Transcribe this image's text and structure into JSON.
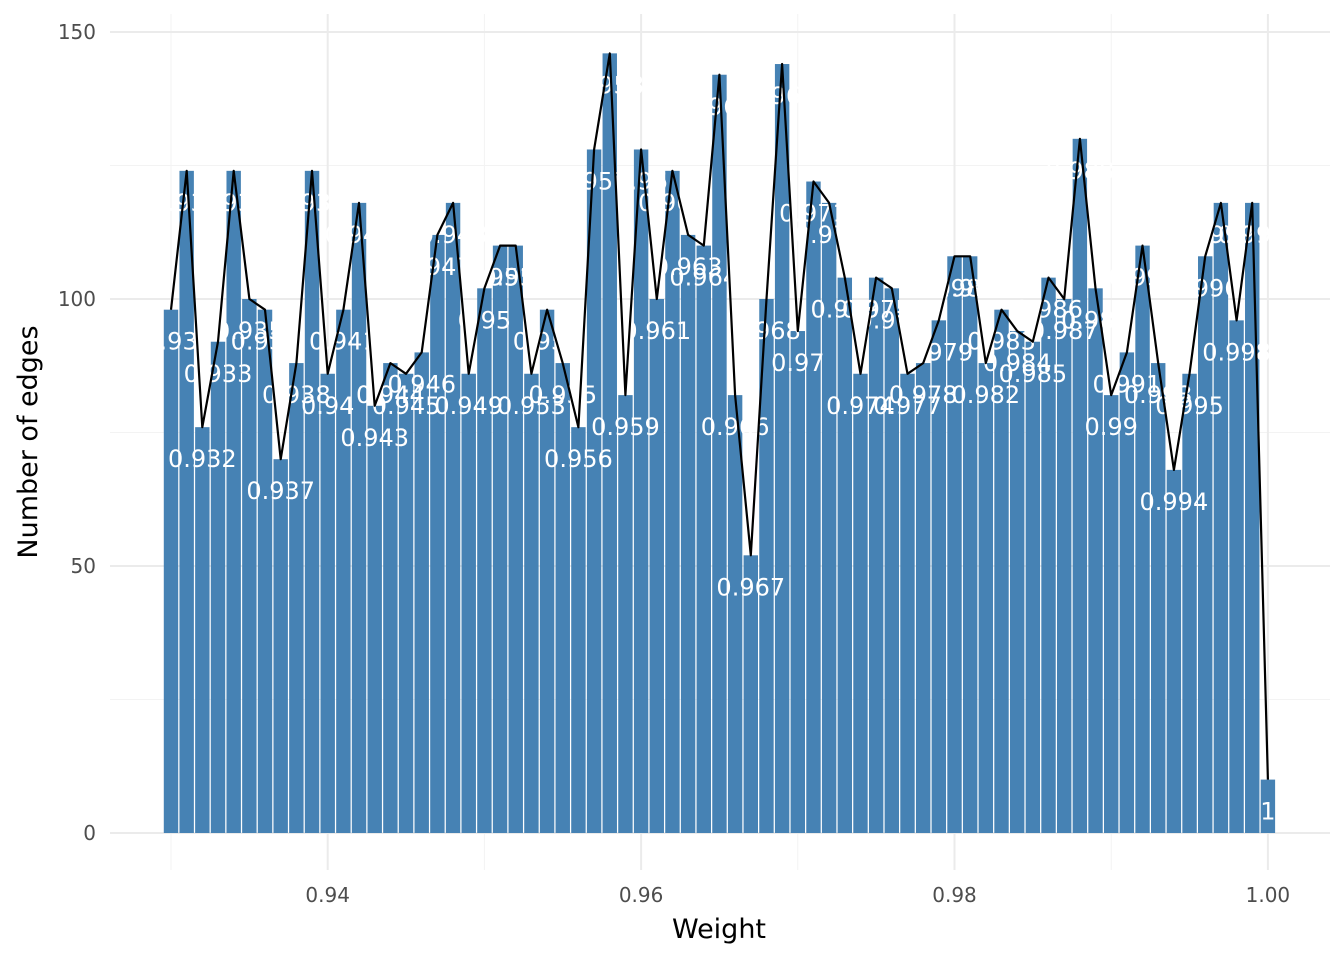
{
  "chart_data": {
    "type": "bar",
    "xlabel": "Weight",
    "ylabel": "Number of edges",
    "xlim": [
      0.926,
      1.0035
    ],
    "ylim": [
      0,
      150
    ],
    "x_ticks": [
      0.94,
      0.96,
      0.98,
      1.0
    ],
    "x_tick_labels": [
      "0.94",
      "0.96",
      "0.98",
      "1.00"
    ],
    "y_ticks": [
      0,
      50,
      100,
      150
    ],
    "y_tick_labels": [
      "0",
      "50",
      "100",
      "150"
    ],
    "grid": true,
    "bar_color": "#4682b4",
    "line_color": "#000000",
    "x": [
      0.93,
      0.931,
      0.932,
      0.933,
      0.934,
      0.935,
      0.936,
      0.937,
      0.938,
      0.939,
      0.94,
      0.941,
      0.942,
      0.943,
      0.944,
      0.945,
      0.946,
      0.947,
      0.948,
      0.949,
      0.95,
      0.951,
      0.952,
      0.953,
      0.954,
      0.955,
      0.956,
      0.957,
      0.958,
      0.959,
      0.96,
      0.961,
      0.962,
      0.963,
      0.964,
      0.965,
      0.966,
      0.967,
      0.968,
      0.969,
      0.97,
      0.971,
      0.972,
      0.973,
      0.974,
      0.975,
      0.976,
      0.977,
      0.978,
      0.979,
      0.98,
      0.981,
      0.982,
      0.983,
      0.984,
      0.985,
      0.986,
      0.987,
      0.988,
      0.989,
      0.99,
      0.991,
      0.992,
      0.993,
      0.994,
      0.995,
      0.996,
      0.997,
      0.998,
      0.999,
      1.0
    ],
    "labels": [
      "0.93",
      "0.931",
      "0.932",
      "0.933",
      "0.934",
      "0.935",
      "0.936",
      "0.937",
      "0.938",
      "0.939",
      "0.94",
      "0.941",
      "0.942",
      "0.943",
      "0.944",
      "0.945",
      "0.946",
      "0.947",
      "0.948",
      "0.949",
      "0.95",
      "0.951",
      "0.952",
      "0.953",
      "0.954",
      "0.955",
      "0.956",
      "0.957",
      "0.958",
      "0.959",
      "0.96",
      "0.961",
      "0.962",
      "0.963",
      "0.964",
      "0.965",
      "0.966",
      "0.967",
      "0.968",
      "0.969",
      "0.97",
      "0.971",
      "0.972",
      "0.973",
      "0.974",
      "0.975",
      "0.976",
      "0.977",
      "0.978",
      "0.979",
      "0.98",
      "0.981",
      "0.982",
      "0.983",
      "0.984",
      "0.985",
      "0.986",
      "0.987",
      "0.988",
      "0.989",
      "0.99",
      "0.991",
      "0.992",
      "0.993",
      "0.994",
      "0.995",
      "0.996",
      "0.997",
      "0.998",
      "0.999",
      "1"
    ],
    "values": [
      98,
      124,
      76,
      92,
      124,
      100,
      98,
      70,
      88,
      124,
      86,
      98,
      118,
      80,
      88,
      86,
      90,
      112,
      118,
      86,
      102,
      110,
      110,
      86,
      98,
      88,
      76,
      128,
      146,
      82,
      128,
      100,
      124,
      112,
      110,
      142,
      82,
      52,
      100,
      144,
      94,
      122,
      118,
      104,
      86,
      104,
      102,
      86,
      88,
      96,
      108,
      108,
      88,
      98,
      94,
      92,
      104,
      100,
      130,
      102,
      82,
      90,
      110,
      88,
      68,
      86,
      108,
      118,
      96,
      118,
      10
    ]
  }
}
